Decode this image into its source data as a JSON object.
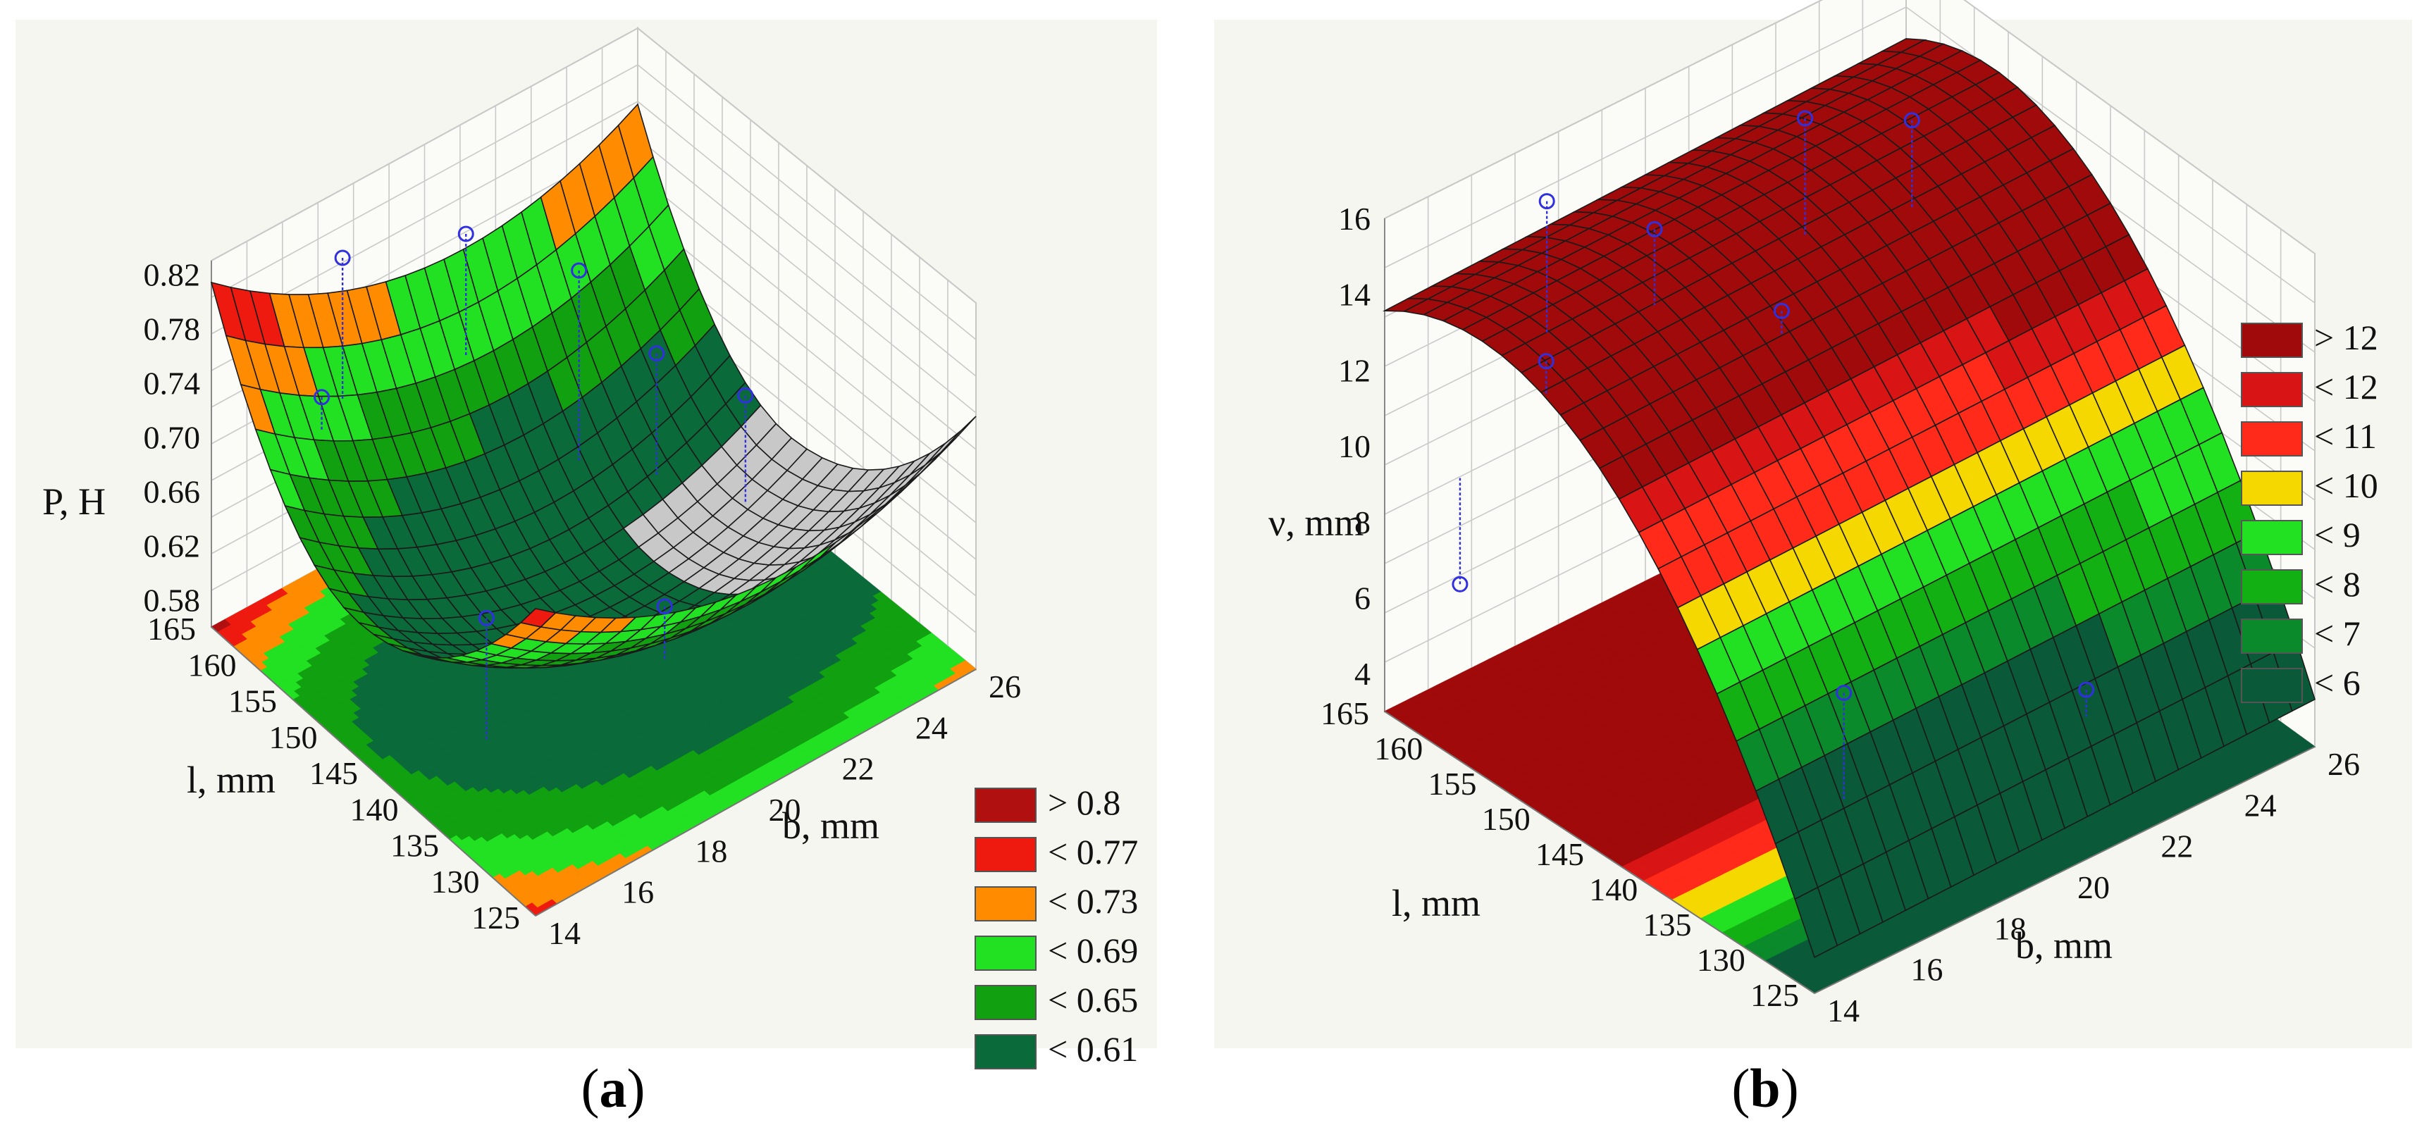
{
  "chart_data": [
    {
      "panel": "a",
      "caption": "a",
      "type": "surface3d",
      "zlabel": "P, H",
      "xlabel": "b, mm",
      "ylabel": "l, mm",
      "zticks": [
        "0.82",
        "0.78",
        "0.74",
        "0.70",
        "0.66",
        "0.62",
        "0.58"
      ],
      "xticks": [
        "14",
        "16",
        "18",
        "20",
        "22",
        "24",
        "26"
      ],
      "yticks": [
        "125",
        "130",
        "135",
        "140",
        "145",
        "150",
        "155",
        "160",
        "165"
      ],
      "zlim": [
        0.56,
        0.83
      ],
      "xlim": [
        14,
        26
      ],
      "ylim": [
        125,
        165
      ],
      "surface": "concave bowl with minimum near b=20, l=145",
      "legend": [
        {
          "label": "> 0.8",
          "color": "#b01010"
        },
        {
          "label": "< 0.77",
          "color": "#ee1a10"
        },
        {
          "label": "< 0.73",
          "color": "#ff8c00"
        },
        {
          "label": "< 0.69",
          "color": "#22e022"
        },
        {
          "label": "< 0.65",
          "color": "#10a010"
        },
        {
          "label": "< 0.61",
          "color": "#0a6a3a"
        }
      ]
    },
    {
      "panel": "b",
      "caption": "b",
      "type": "surface3d",
      "zlabel": "ν, mm",
      "xlabel": "b, mm",
      "ylabel": "l, mm",
      "zticks": [
        "16",
        "14",
        "12",
        "10",
        "8",
        "6",
        "4"
      ],
      "xticks": [
        "14",
        "16",
        "18",
        "20",
        "22",
        "24",
        "26"
      ],
      "yticks": [
        "125",
        "130",
        "135",
        "140",
        "145",
        "150",
        "155",
        "160",
        "165"
      ],
      "zlim": [
        3,
        16
      ],
      "xlim": [
        14,
        26
      ],
      "ylim": [
        125,
        165
      ],
      "surface": "convex ridge with maximum near l=155, decreasing toward l=125",
      "legend": [
        {
          "label": "> 12",
          "color": "#a00a0a"
        },
        {
          "label": "< 12",
          "color": "#d81414"
        },
        {
          "label": "< 11",
          "color": "#ff2a1a"
        },
        {
          "label": "< 10",
          "color": "#f5d800"
        },
        {
          "label": "< 9",
          "color": "#22e022"
        },
        {
          "label": "< 8",
          "color": "#12b012"
        },
        {
          "label": "< 7",
          "color": "#0a8a2a"
        },
        {
          "label": "< 6",
          "color": "#0a5a3a"
        }
      ]
    }
  ]
}
